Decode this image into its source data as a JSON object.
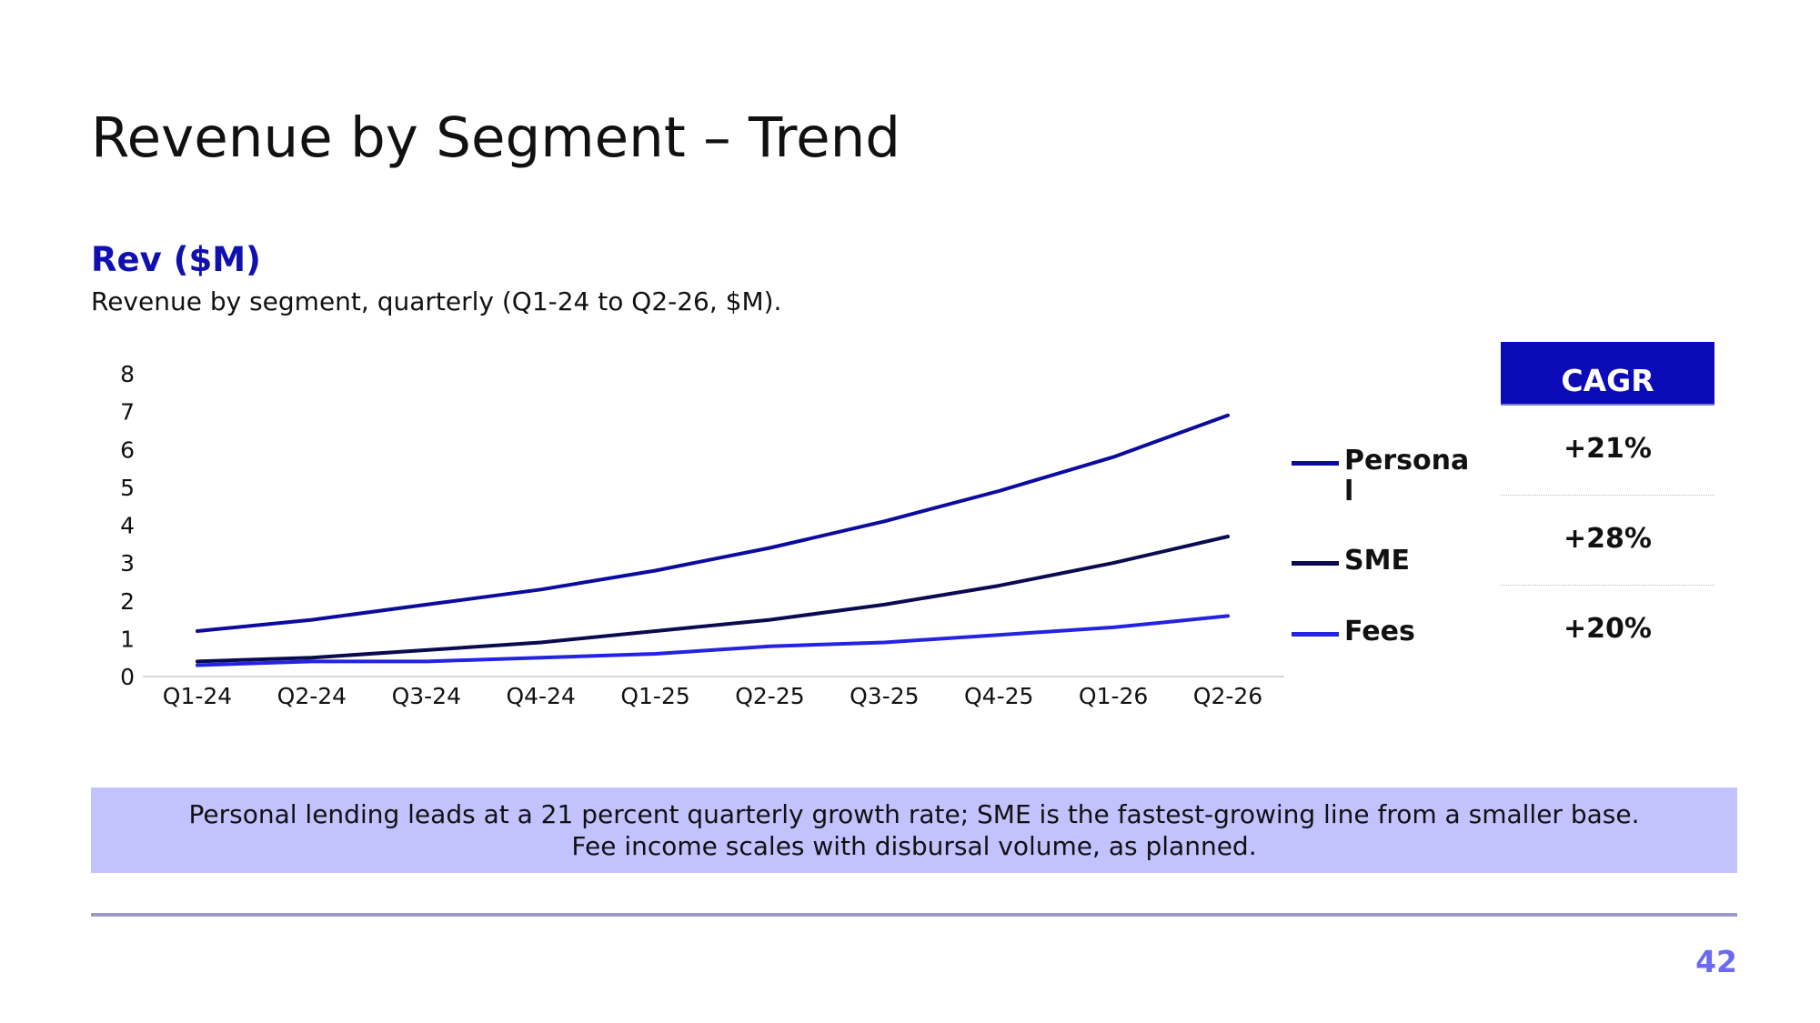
{
  "slide": {
    "title": "Revenue by Segment – Trend",
    "page_number": "42"
  },
  "chart_data": {
    "type": "line",
    "title": "Rev ($M)",
    "subtitle": "Revenue by segment, quarterly (Q1-24 to Q2-26, $M).",
    "xlabel": "",
    "ylabel": "",
    "categories": [
      "Q1-24",
      "Q2-24",
      "Q3-24",
      "Q4-24",
      "Q1-25",
      "Q2-25",
      "Q3-25",
      "Q4-25",
      "Q1-26",
      "Q2-26"
    ],
    "ylim": [
      0,
      8
    ],
    "yticks": [
      "0",
      "1",
      "2",
      "3",
      "4",
      "5",
      "6",
      "7",
      "8"
    ],
    "grid": false,
    "legend": "right",
    "series": [
      {
        "name": "Personal",
        "color": "#0b0b9e",
        "values": [
          1.2,
          1.5,
          1.9,
          2.3,
          2.8,
          3.4,
          4.1,
          4.9,
          5.8,
          6.9
        ]
      },
      {
        "name": "SME",
        "color": "#0a0a50",
        "values": [
          0.4,
          0.5,
          0.7,
          0.9,
          1.2,
          1.5,
          1.9,
          2.4,
          3.0,
          3.7
        ]
      },
      {
        "name": "Fees",
        "color": "#2323e0",
        "values": [
          0.3,
          0.4,
          0.4,
          0.5,
          0.6,
          0.8,
          0.9,
          1.1,
          1.3,
          1.6
        ]
      }
    ]
  },
  "cagr_table": {
    "header": "CAGR",
    "rows": [
      "+21%",
      "+28%",
      "+20%"
    ]
  },
  "callout": {
    "line1": "Personal lending leads at a 21 percent quarterly growth rate; SME is the fastest-growing line from a smaller base.",
    "line2": "Fee income scales with disbursal volume, as planned."
  },
  "colors": {
    "accent": "#1010b0",
    "callout_bg": "#c2c2ff",
    "page_number": "#6b6bf0"
  }
}
